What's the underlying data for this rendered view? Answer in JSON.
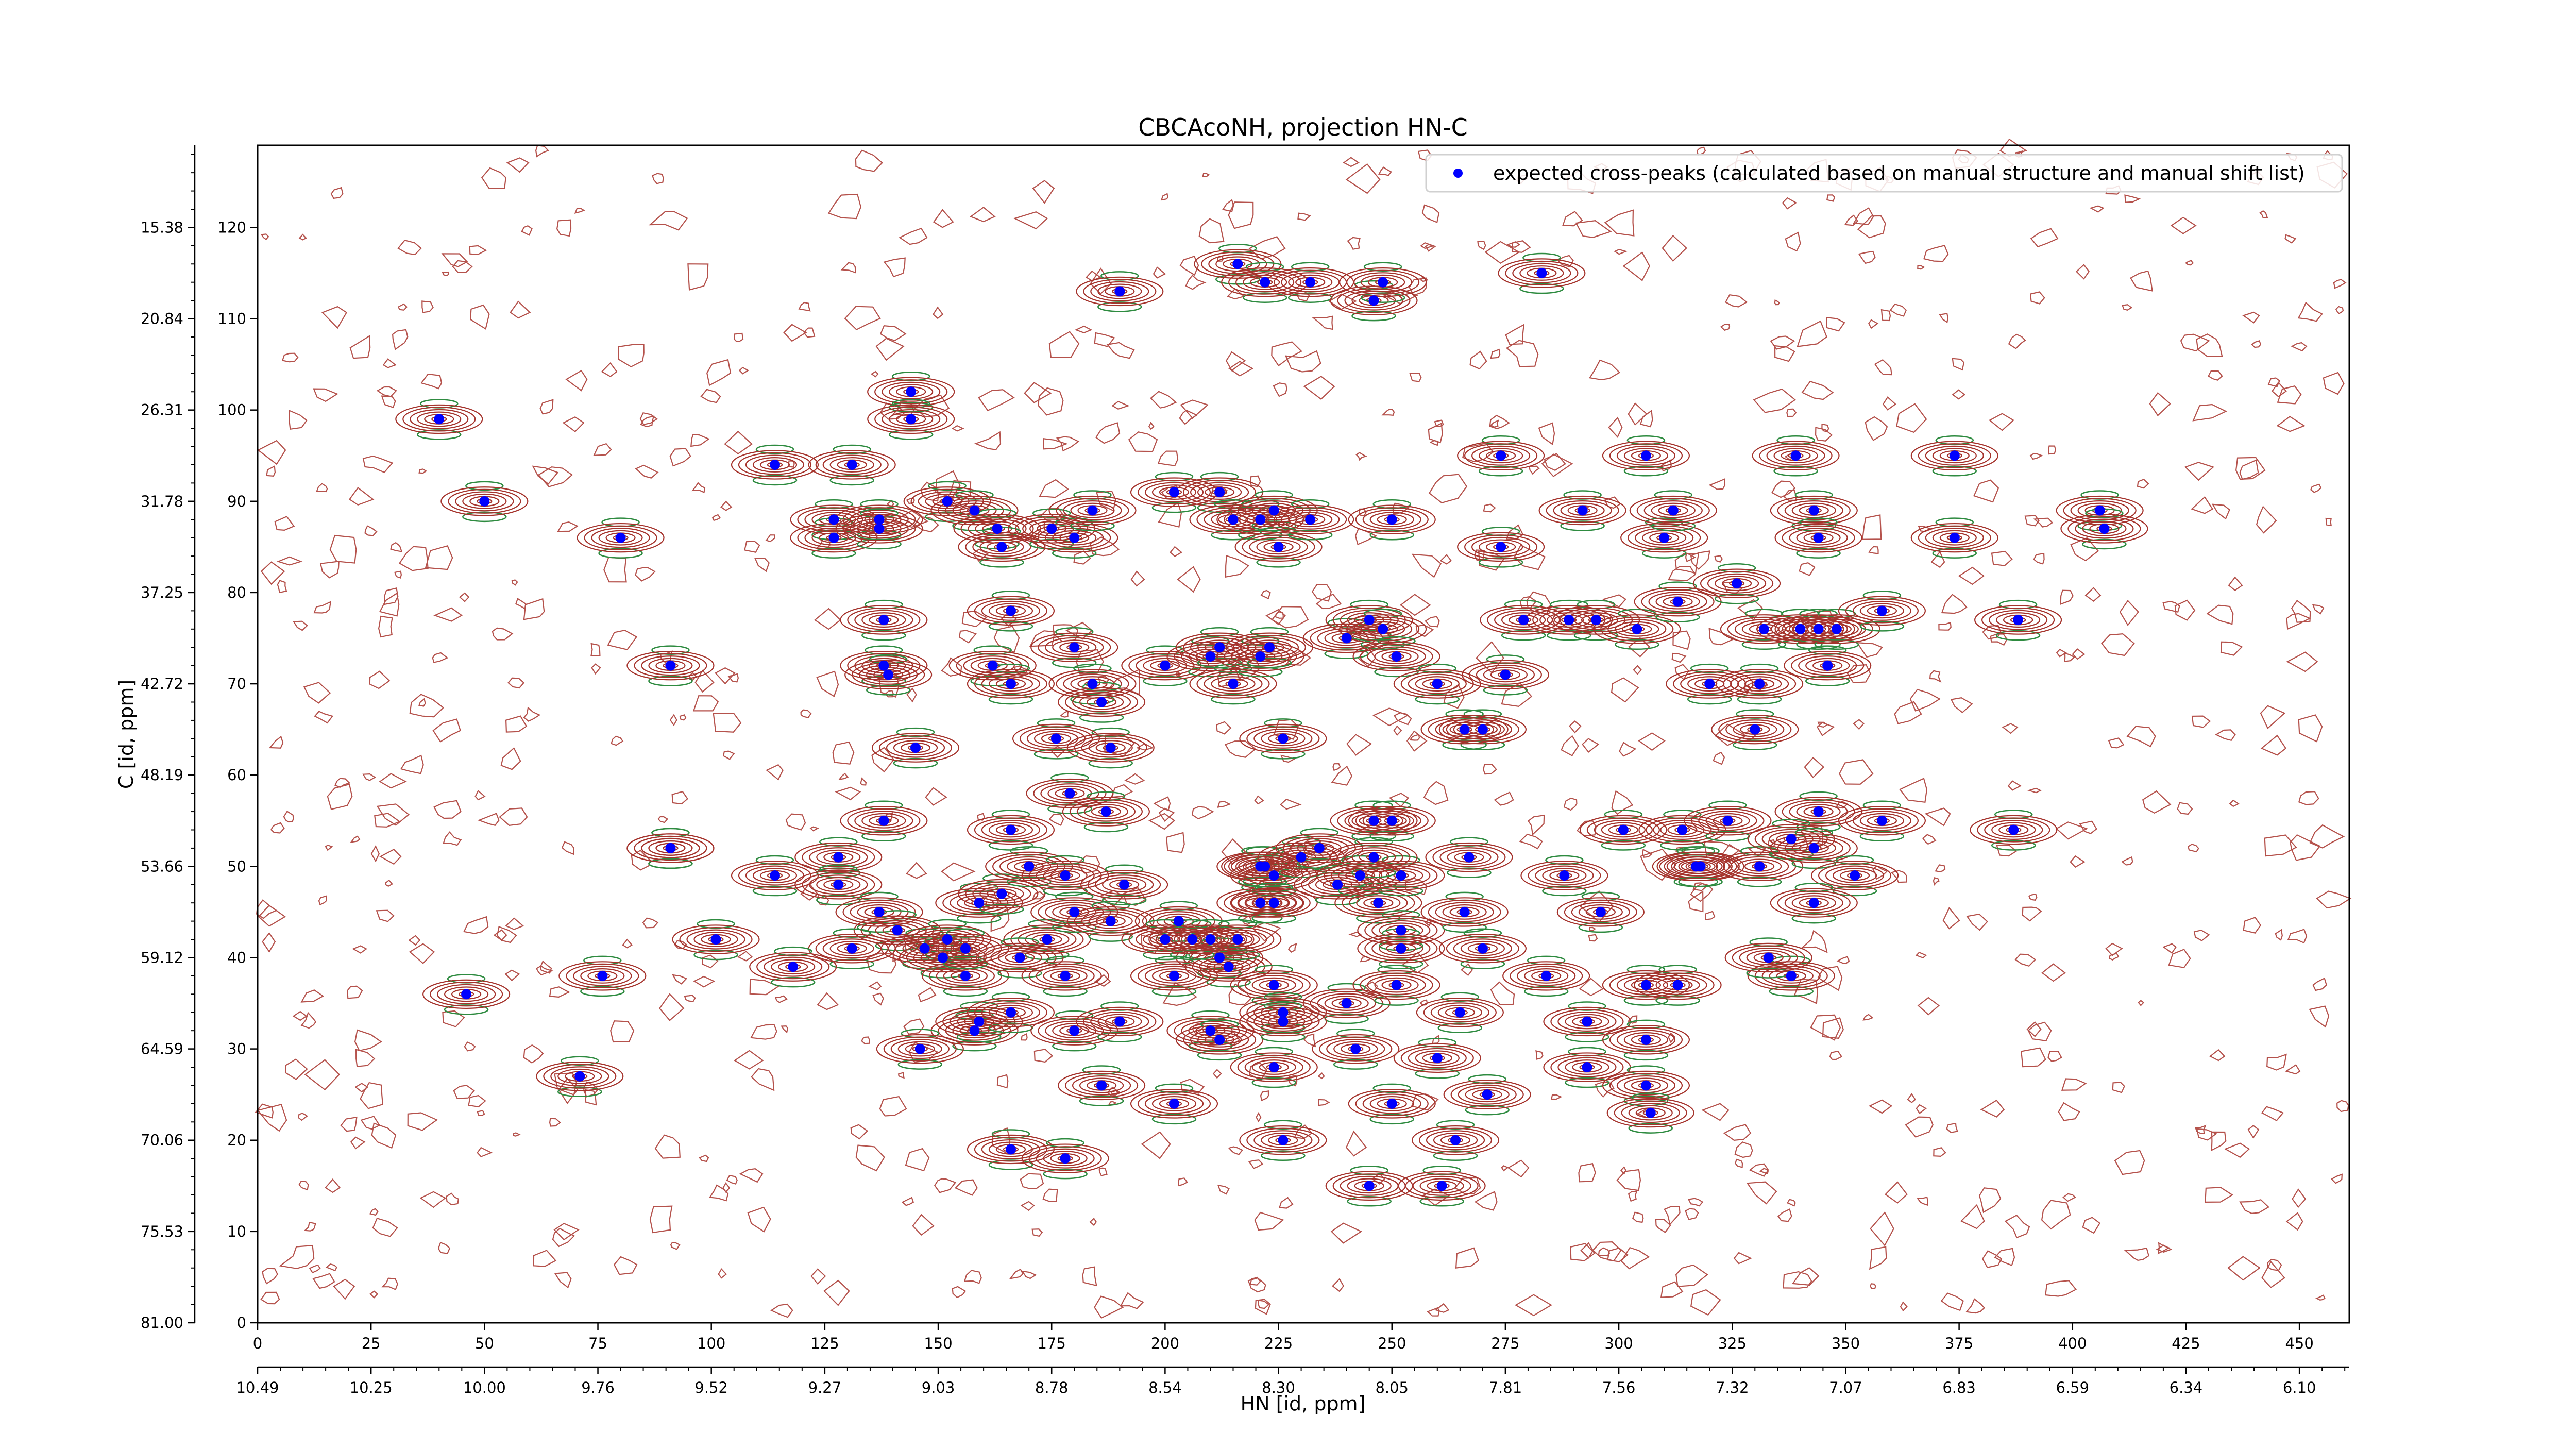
{
  "chart_data": {
    "type": "scatter",
    "title": "CBCAcoNH, projection HN-C",
    "xlabel": "HN [id, ppm]",
    "ylabel": "C [id, ppm]",
    "xlim": [
      0,
      461
    ],
    "ylim": [
      0,
      129
    ],
    "x_ticks_index": [
      "0",
      "25",
      "50",
      "75",
      "100",
      "125",
      "150",
      "175",
      "200",
      "225",
      "250",
      "275",
      "300",
      "325",
      "350",
      "375",
      "400",
      "425",
      "450"
    ],
    "x_ticks_ppm": [
      "10.49",
      "10.25",
      "10.00",
      "9.76",
      "9.52",
      "9.27",
      "9.03",
      "8.78",
      "8.54",
      "8.30",
      "8.05",
      "7.81",
      "7.56",
      "7.32",
      "7.07",
      "6.83",
      "6.59",
      "6.34",
      "6.10"
    ],
    "y_ticks_index": [
      "0",
      "10",
      "20",
      "30",
      "40",
      "50",
      "60",
      "70",
      "80",
      "90",
      "100",
      "110",
      "120"
    ],
    "y_ticks_ppm": [
      "81.00",
      "75.53",
      "70.06",
      "64.59",
      "59.12",
      "53.66",
      "48.19",
      "42.72",
      "37.25",
      "31.78",
      "26.31",
      "20.84",
      "15.38"
    ],
    "legend": {
      "position": "upper right",
      "label": "expected cross-peaks (calculated based on manual structure and manual shift list)"
    },
    "colors": {
      "peak_marker": "#0000ff",
      "positive_contour": "#a5332c",
      "negative_contour": "#2e8b40",
      "noise": "#b5524c"
    },
    "series": [
      {
        "name": "expected cross-peaks (calculated based on manual structure and manual shift list)",
        "points": [
          [
            40,
            99
          ],
          [
            50,
            90
          ],
          [
            80,
            86
          ],
          [
            91,
            72
          ],
          [
            91,
            52
          ],
          [
            114,
            94
          ],
          [
            131,
            94
          ],
          [
            144,
            102
          ],
          [
            144,
            99
          ],
          [
            127,
            88
          ],
          [
            127,
            86
          ],
          [
            137,
            88
          ],
          [
            137,
            87
          ],
          [
            152,
            90
          ],
          [
            158,
            89
          ],
          [
            163,
            87
          ],
          [
            164,
            85
          ],
          [
            175,
            87
          ],
          [
            180,
            86
          ],
          [
            184,
            89
          ],
          [
            190,
            113
          ],
          [
            216,
            116
          ],
          [
            222,
            114
          ],
          [
            232,
            114
          ],
          [
            246,
            112
          ],
          [
            248,
            114
          ],
          [
            283,
            115
          ],
          [
            202,
            91
          ],
          [
            212,
            91
          ],
          [
            215,
            88
          ],
          [
            221,
            88
          ],
          [
            224,
            89
          ],
          [
            225,
            85
          ],
          [
            232,
            88
          ],
          [
            250,
            88
          ],
          [
            274,
            95
          ],
          [
            274,
            85
          ],
          [
            292,
            89
          ],
          [
            306,
            95
          ],
          [
            310,
            86
          ],
          [
            312,
            89
          ],
          [
            339,
            95
          ],
          [
            343,
            89
          ],
          [
            344,
            86
          ],
          [
            374,
            95
          ],
          [
            374,
            86
          ],
          [
            406,
            89
          ],
          [
            407,
            87
          ],
          [
            138,
            77
          ],
          [
            138,
            72
          ],
          [
            139,
            71
          ],
          [
            166,
            78
          ],
          [
            162,
            72
          ],
          [
            166,
            70
          ],
          [
            180,
            74
          ],
          [
            184,
            70
          ],
          [
            186,
            68
          ],
          [
            200,
            72
          ],
          [
            210,
            73
          ],
          [
            212,
            74
          ],
          [
            215,
            70
          ],
          [
            221,
            73
          ],
          [
            223,
            74
          ],
          [
            226,
            64
          ],
          [
            240,
            75
          ],
          [
            245,
            77
          ],
          [
            248,
            76
          ],
          [
            251,
            73
          ],
          [
            260,
            70
          ],
          [
            275,
            71
          ],
          [
            270,
            65
          ],
          [
            266,
            65
          ],
          [
            279,
            77
          ],
          [
            289,
            77
          ],
          [
            295,
            77
          ],
          [
            304,
            76
          ],
          [
            313,
            79
          ],
          [
            326,
            81
          ],
          [
            332,
            76
          ],
          [
            340,
            76
          ],
          [
            344,
            76
          ],
          [
            348,
            76
          ],
          [
            358,
            78
          ],
          [
            388,
            77
          ],
          [
            320,
            70
          ],
          [
            331,
            70
          ],
          [
            330,
            65
          ],
          [
            346,
            72
          ],
          [
            145,
            63
          ],
          [
            188,
            63
          ],
          [
            179,
            58
          ],
          [
            176,
            64
          ],
          [
            138,
            55
          ],
          [
            166,
            54
          ],
          [
            187,
            56
          ],
          [
            91,
            52
          ],
          [
            114,
            49
          ],
          [
            128,
            51
          ],
          [
            128,
            48
          ],
          [
            137,
            45
          ],
          [
            141,
            43
          ],
          [
            147,
            41
          ],
          [
            151,
            40
          ],
          [
            156,
            38
          ],
          [
            131,
            41
          ],
          [
            159,
            46
          ],
          [
            164,
            47
          ],
          [
            170,
            50
          ],
          [
            174,
            42
          ],
          [
            178,
            49
          ],
          [
            180,
            45
          ],
          [
            188,
            44
          ],
          [
            191,
            48
          ],
          [
            203,
            44
          ],
          [
            210,
            42
          ],
          [
            212,
            40
          ],
          [
            214,
            39
          ],
          [
            216,
            42
          ],
          [
            221,
            46
          ],
          [
            221,
            50
          ],
          [
            224,
            49
          ],
          [
            224,
            46
          ],
          [
            222,
            50
          ],
          [
            230,
            51
          ],
          [
            234,
            52
          ],
          [
            238,
            48
          ],
          [
            243,
            49
          ],
          [
            247,
            46
          ],
          [
            252,
            49
          ],
          [
            252,
            43
          ],
          [
            246,
            55
          ],
          [
            246,
            51
          ],
          [
            250,
            55
          ],
          [
            267,
            51
          ],
          [
            266,
            45
          ],
          [
            288,
            49
          ],
          [
            301,
            54
          ],
          [
            314,
            54
          ],
          [
            331,
            50
          ],
          [
            318,
            50
          ],
          [
            324,
            55
          ],
          [
            344,
            56
          ],
          [
            338,
            53
          ],
          [
            343,
            52
          ],
          [
            358,
            55
          ],
          [
            387,
            54
          ],
          [
            296,
            45
          ],
          [
            317,
            50
          ],
          [
            352,
            49
          ],
          [
            343,
            46
          ],
          [
            101,
            42
          ],
          [
            118,
            39
          ],
          [
            46,
            36
          ],
          [
            76,
            38
          ],
          [
            152,
            42
          ],
          [
            156,
            41
          ],
          [
            168,
            40
          ],
          [
            178,
            38
          ],
          [
            200,
            42
          ],
          [
            202,
            38
          ],
          [
            206,
            42
          ],
          [
            224,
            37
          ],
          [
            226,
            34
          ],
          [
            240,
            35
          ],
          [
            251,
            37
          ],
          [
            252,
            41
          ],
          [
            265,
            34
          ],
          [
            270,
            41
          ],
          [
            284,
            38
          ],
          [
            293,
            33
          ],
          [
            306,
            37
          ],
          [
            313,
            37
          ],
          [
            338,
            38
          ],
          [
            333,
            40
          ],
          [
            158,
            32
          ],
          [
            159,
            33
          ],
          [
            166,
            34
          ],
          [
            146,
            30
          ],
          [
            180,
            32
          ],
          [
            210,
            32
          ],
          [
            212,
            31
          ],
          [
            224,
            28
          ],
          [
            226,
            33
          ],
          [
            242,
            30
          ],
          [
            260,
            29
          ],
          [
            271,
            25
          ],
          [
            293,
            28
          ],
          [
            306,
            31
          ],
          [
            306,
            26
          ],
          [
            307,
            23
          ],
          [
            190,
            33
          ],
          [
            186,
            26
          ],
          [
            166,
            19
          ],
          [
            178,
            18
          ],
          [
            202,
            24
          ],
          [
            250,
            24
          ],
          [
            226,
            20
          ],
          [
            264,
            20
          ],
          [
            261,
            15
          ],
          [
            245,
            15
          ],
          [
            71,
            27
          ]
        ]
      }
    ]
  }
}
